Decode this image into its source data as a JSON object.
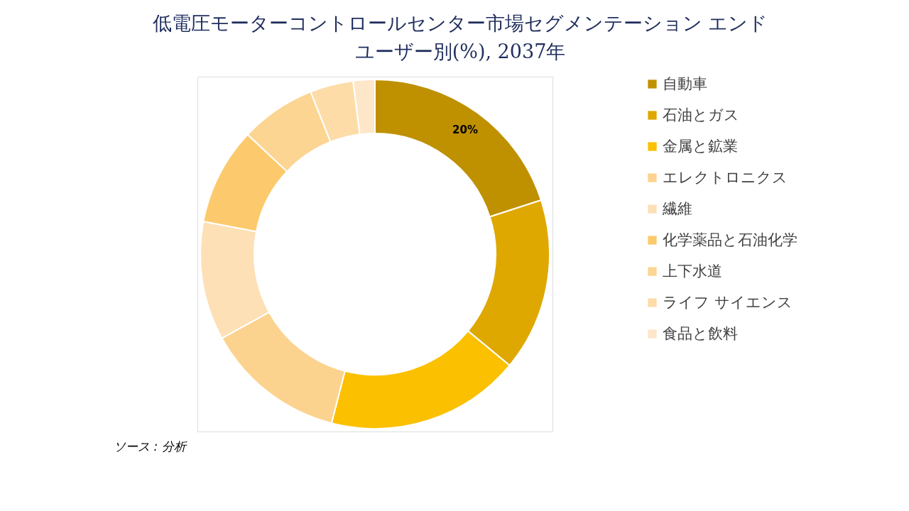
{
  "chart_data": {
    "type": "donut",
    "title": "低電圧モーターコントロールセンター市場セグメンテーション エンドユーザー別(%), 2037年",
    "categories": [
      "自動車",
      "石油とガス",
      "金属と鉱業",
      "エレクトロニクス",
      "繊維",
      "化学薬品と石油化学",
      "上下水道",
      "ライフ サイエンス",
      "食品と飲料"
    ],
    "values": [
      20,
      16,
      18,
      13,
      11,
      9,
      7,
      4,
      2
    ],
    "colors": [
      "#bf9000",
      "#dfa800",
      "#fbc000",
      "#fcd38e",
      "#fde0b6",
      "#fcca6c",
      "#fcd592",
      "#fddca8",
      "#fee6c8"
    ],
    "value_labels": [
      "20%",
      null,
      null,
      null,
      null,
      null,
      null,
      null,
      null
    ],
    "legend": "right",
    "annotations": [
      "ソース : 分析"
    ]
  }
}
